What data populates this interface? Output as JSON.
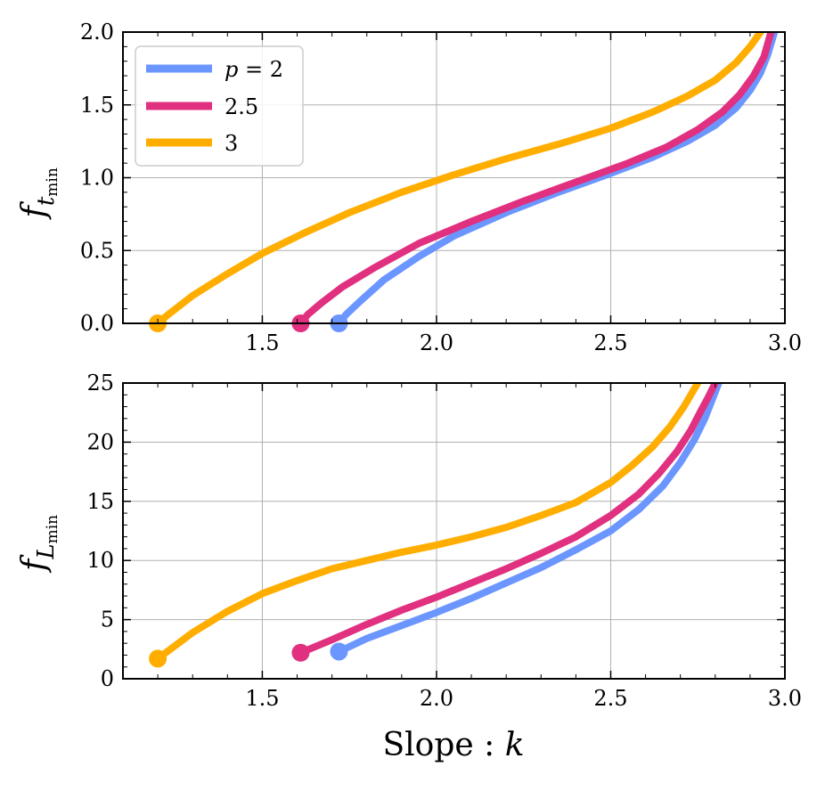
{
  "chart_data": [
    {
      "type": "line",
      "ylabel": "f_{t_min}",
      "ylabel_main": "f",
      "ylabel_sub": "t",
      "ylabel_subsub": "min",
      "xlim": [
        1.1,
        3.0
      ],
      "ylim": [
        0.0,
        2.0
      ],
      "xticks": [
        1.5,
        2.0,
        2.5,
        3.0
      ],
      "xtick_labels": [
        "1.5",
        "2.0",
        "2.5",
        "3.0"
      ],
      "yticks": [
        0.0,
        0.5,
        1.0,
        1.5,
        2.0
      ],
      "ytick_labels": [
        "0.0",
        "0.5",
        "1.0",
        "1.5",
        "2.0"
      ],
      "grid": true,
      "legend_position": "top-left",
      "legend_entries": [
        {
          "label_italic": "p",
          "label_rest": " = 2"
        },
        {
          "label_italic": "",
          "label_rest": "2.5"
        },
        {
          "label_italic": "",
          "label_rest": "3"
        }
      ],
      "series": [
        {
          "name": "p = 2",
          "color": "#6b96ff",
          "marker_start": true,
          "x": [
            1.72,
            1.74,
            1.78,
            1.85,
            1.95,
            2.05,
            2.2,
            2.35,
            2.5,
            2.62,
            2.72,
            2.8,
            2.86,
            2.9,
            2.93,
            2.95,
            2.97
          ],
          "y": [
            0.0,
            0.06,
            0.15,
            0.3,
            0.46,
            0.6,
            0.76,
            0.9,
            1.03,
            1.14,
            1.25,
            1.36,
            1.48,
            1.6,
            1.72,
            1.84,
            2.0
          ]
        },
        {
          "name": "2.5",
          "color": "#e0307f",
          "marker_start": true,
          "x": [
            1.61,
            1.63,
            1.67,
            1.73,
            1.82,
            1.95,
            2.1,
            2.25,
            2.4,
            2.55,
            2.66,
            2.75,
            2.82,
            2.87,
            2.91,
            2.94,
            2.96
          ],
          "y": [
            0.0,
            0.06,
            0.14,
            0.25,
            0.38,
            0.55,
            0.7,
            0.84,
            0.97,
            1.1,
            1.21,
            1.33,
            1.45,
            1.57,
            1.7,
            1.83,
            2.0
          ]
        },
        {
          "name": "3",
          "color": "#ffae00",
          "marker_start": true,
          "x": [
            1.2,
            1.23,
            1.3,
            1.4,
            1.5,
            1.62,
            1.75,
            1.9,
            2.05,
            2.2,
            2.35,
            2.5,
            2.62,
            2.72,
            2.8,
            2.86,
            2.9,
            2.93
          ],
          "y": [
            0.0,
            0.06,
            0.19,
            0.34,
            0.48,
            0.62,
            0.76,
            0.9,
            1.02,
            1.13,
            1.23,
            1.34,
            1.45,
            1.56,
            1.67,
            1.79,
            1.9,
            2.0
          ]
        }
      ]
    },
    {
      "type": "line",
      "xlabel_main": "Slope : ",
      "xlabel_italic": "k",
      "ylabel": "f_{L_min}",
      "ylabel_main": "f",
      "ylabel_sub": "L",
      "ylabel_subsub": "min",
      "xlim": [
        1.1,
        3.0
      ],
      "ylim": [
        0,
        25
      ],
      "xticks": [
        1.5,
        2.0,
        2.5,
        3.0
      ],
      "xtick_labels": [
        "1.5",
        "2.0",
        "2.5",
        "3.0"
      ],
      "yticks": [
        0,
        5,
        10,
        15,
        20,
        25
      ],
      "ytick_labels": [
        "0",
        "5",
        "10",
        "15",
        "20",
        "25"
      ],
      "grid": true,
      "series": [
        {
          "name": "p = 2",
          "color": "#6b96ff",
          "marker_start": true,
          "x": [
            1.72,
            1.8,
            1.9,
            2.0,
            2.1,
            2.2,
            2.3,
            2.4,
            2.5,
            2.58,
            2.65,
            2.7,
            2.74,
            2.77,
            2.79,
            2.81
          ],
          "y": [
            2.3,
            3.4,
            4.5,
            5.6,
            6.8,
            8.1,
            9.4,
            10.9,
            12.5,
            14.3,
            16.3,
            18.3,
            20.2,
            22.0,
            23.5,
            25.0
          ]
        },
        {
          "name": "2.5",
          "color": "#e0307f",
          "marker_start": true,
          "x": [
            1.61,
            1.7,
            1.8,
            1.9,
            2.0,
            2.1,
            2.2,
            2.3,
            2.4,
            2.5,
            2.58,
            2.64,
            2.69,
            2.73,
            2.76,
            2.78,
            2.8
          ],
          "y": [
            2.2,
            3.3,
            4.6,
            5.8,
            6.9,
            8.1,
            9.3,
            10.6,
            12.0,
            13.8,
            15.6,
            17.4,
            19.2,
            21.0,
            22.7,
            23.8,
            25.0
          ]
        },
        {
          "name": "3",
          "color": "#ffae00",
          "marker_start": true,
          "x": [
            1.2,
            1.3,
            1.4,
            1.5,
            1.6,
            1.7,
            1.8,
            1.9,
            2.0,
            2.1,
            2.2,
            2.3,
            2.4,
            2.5,
            2.56,
            2.62,
            2.67,
            2.71,
            2.75
          ],
          "y": [
            1.7,
            3.9,
            5.7,
            7.2,
            8.3,
            9.3,
            10.0,
            10.7,
            11.3,
            12.0,
            12.8,
            13.8,
            14.9,
            16.6,
            18.0,
            19.6,
            21.3,
            23.0,
            25.0
          ]
        }
      ]
    }
  ]
}
